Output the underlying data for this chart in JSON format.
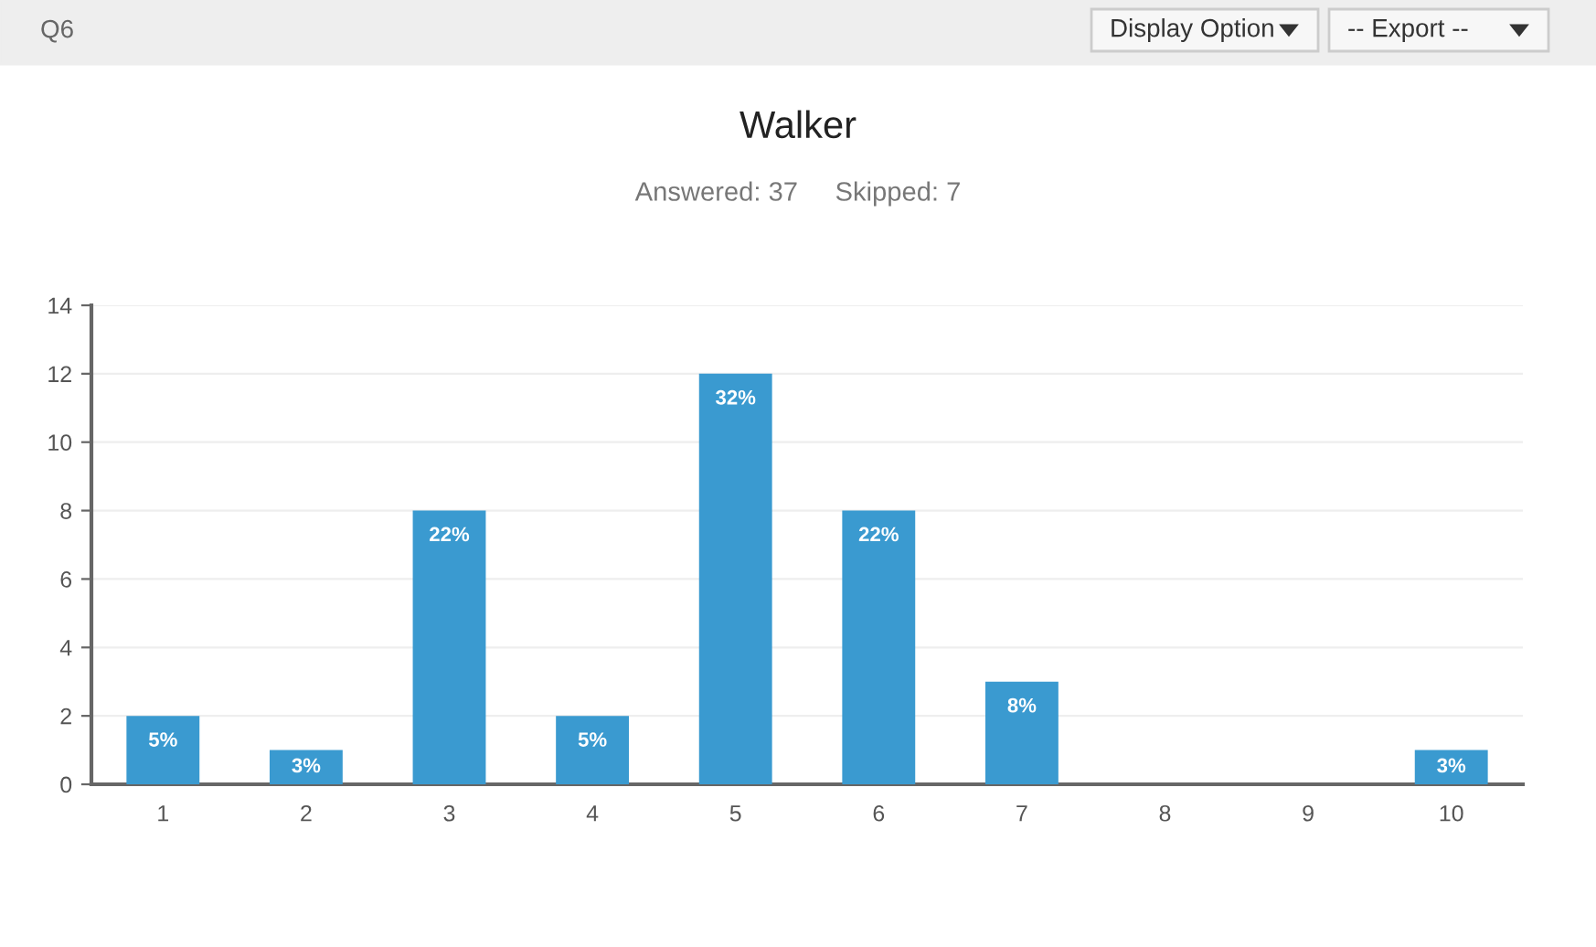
{
  "chart_data": {
    "type": "bar",
    "title": "Walker",
    "subtitle": "Answered: 37     Skipped: 7",
    "categories": [
      "1",
      "2",
      "3",
      "4",
      "5",
      "6",
      "7",
      "8",
      "9",
      "10"
    ],
    "values": [
      2,
      1,
      8,
      2,
      12,
      8,
      3,
      0,
      0,
      1
    ],
    "color": "#3a9ad0",
    "ylim": [
      0,
      14
    ],
    "yticks": [
      0,
      2,
      4,
      6,
      8,
      10,
      12,
      14
    ],
    "grid": "y",
    "legend": false,
    "annotations": [
      "Q6",
      "Display Option",
      "-- Export --",
      {
        "text": "5%",
        "x": "1",
        "y": 2
      },
      {
        "text": "3%",
        "x": "2",
        "y": 1
      },
      {
        "text": "22%",
        "x": "3",
        "y": 8
      },
      {
        "text": "5%",
        "x": "4",
        "y": 2
      },
      {
        "text": "32%",
        "x": "5",
        "y": 12
      },
      {
        "text": "22%",
        "x": "6",
        "y": 8
      },
      {
        "text": "8%",
        "x": "7",
        "y": 3
      },
      {
        "text": "3%",
        "x": "10",
        "y": 1
      }
    ]
  }
}
